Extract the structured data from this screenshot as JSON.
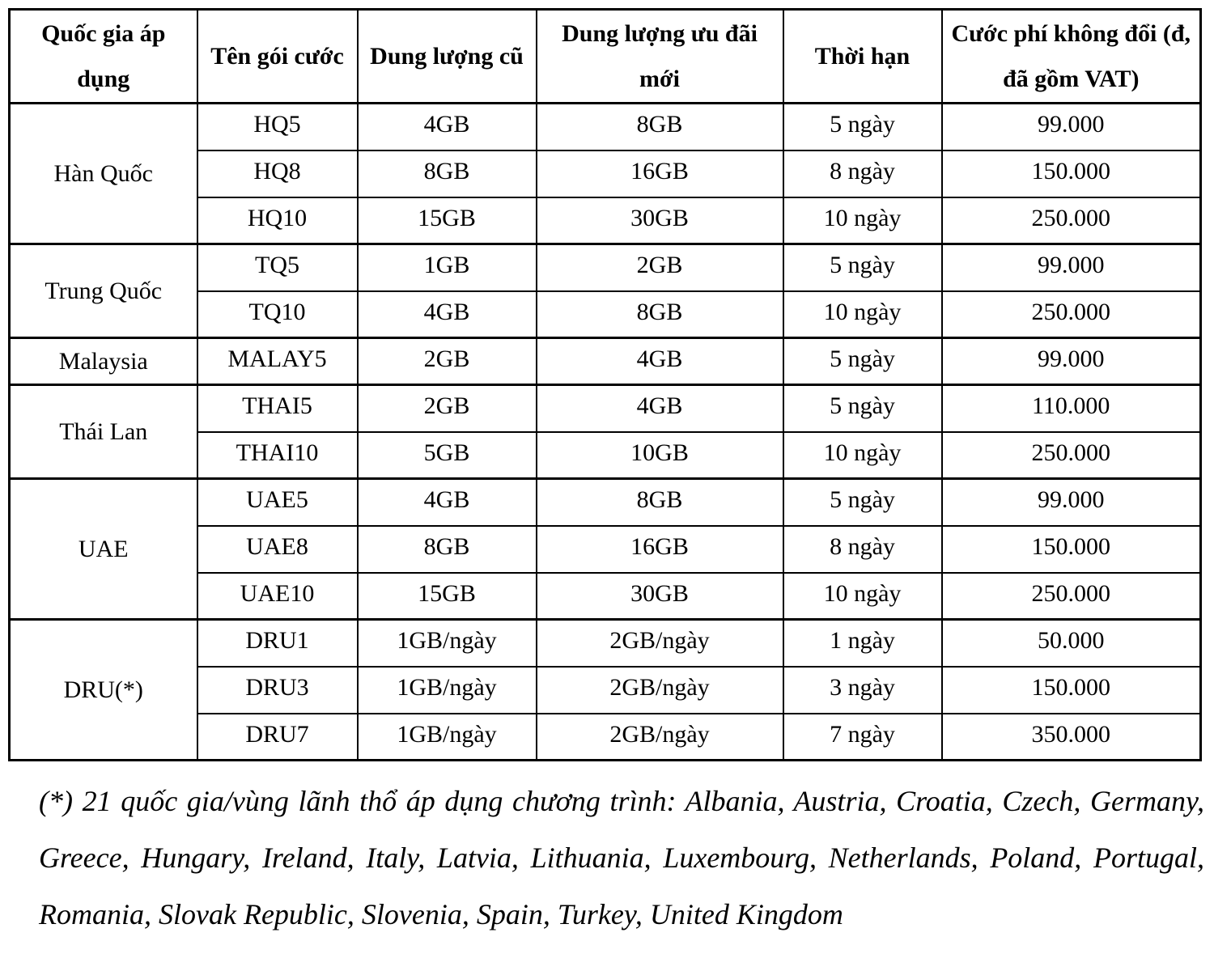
{
  "table": {
    "headers": [
      "Quốc gia áp dụng",
      "Tên gói cước",
      "Dung lượng cũ",
      "Dung lượng ưu đãi mới",
      "Thời hạn",
      "Cước phí không đổi (đ, đã gồm VAT)"
    ],
    "groups": [
      {
        "country": "Hàn Quốc",
        "rows": [
          {
            "package": "HQ5",
            "old_data": "4GB",
            "new_data": "8GB",
            "duration": "5 ngày",
            "price": "99.000"
          },
          {
            "package": "HQ8",
            "old_data": "8GB",
            "new_data": "16GB",
            "duration": "8 ngày",
            "price": "150.000"
          },
          {
            "package": "HQ10",
            "old_data": "15GB",
            "new_data": "30GB",
            "duration": "10 ngày",
            "price": "250.000"
          }
        ]
      },
      {
        "country": "Trung Quốc",
        "rows": [
          {
            "package": "TQ5",
            "old_data": "1GB",
            "new_data": "2GB",
            "duration": "5 ngày",
            "price": "99.000"
          },
          {
            "package": "TQ10",
            "old_data": "4GB",
            "new_data": "8GB",
            "duration": "10 ngày",
            "price": "250.000"
          }
        ]
      },
      {
        "country": "Malaysia",
        "rows": [
          {
            "package": "MALAY5",
            "old_data": "2GB",
            "new_data": "4GB",
            "duration": "5 ngày",
            "price": "99.000"
          }
        ]
      },
      {
        "country": "Thái Lan",
        "rows": [
          {
            "package": "THAI5",
            "old_data": "2GB",
            "new_data": "4GB",
            "duration": "5 ngày",
            "price": "110.000"
          },
          {
            "package": "THAI10",
            "old_data": "5GB",
            "new_data": "10GB",
            "duration": "10 ngày",
            "price": "250.000"
          }
        ]
      },
      {
        "country": "UAE",
        "rows": [
          {
            "package": "UAE5",
            "old_data": "4GB",
            "new_data": "8GB",
            "duration": "5 ngày",
            "price": "99.000"
          },
          {
            "package": "UAE8",
            "old_data": "8GB",
            "new_data": "16GB",
            "duration": "8 ngày",
            "price": "150.000"
          },
          {
            "package": "UAE10",
            "old_data": "15GB",
            "new_data": "30GB",
            "duration": "10 ngày",
            "price": "250.000"
          }
        ]
      },
      {
        "country": "DRU(*)",
        "rows": [
          {
            "package": "DRU1",
            "old_data": "1GB/ngày",
            "new_data": "2GB/ngày",
            "duration": "1 ngày",
            "price": "50.000"
          },
          {
            "package": "DRU3",
            "old_data": "1GB/ngày",
            "new_data": "2GB/ngày",
            "duration": "3 ngày",
            "price": "150.000"
          },
          {
            "package": "DRU7",
            "old_data": "1GB/ngày",
            "new_data": "2GB/ngày",
            "duration": "7 ngày",
            "price": "350.000"
          }
        ]
      }
    ]
  },
  "footnote": "(*) 21 quốc gia/vùng lãnh thổ áp dụng chương trình: Albania, Austria, Croatia, Czech, Germany, Greece, Hungary, Ireland, Italy, Latvia, Lithuania, Luxembourg, Netherlands, Poland, Portugal, Romania, Slovak Republic, Slovenia, Spain, Turkey, United Kingdom"
}
